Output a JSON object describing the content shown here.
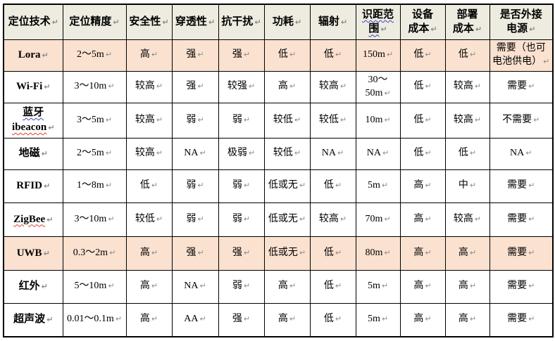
{
  "document": {
    "paragraph_mark": "↵"
  },
  "colors": {
    "header_bg": "#EEECE1",
    "highlight_row_bg": "#FAE1D0",
    "row_bg": "#FFFFFF",
    "border": "#000000",
    "text": "#000000",
    "pmark": "#8a8a8a",
    "squiggle_blue": "#3b45c4",
    "squiggle_red": "#e03c31"
  },
  "table": {
    "header": [
      {
        "label": "定位技术",
        "lines": [
          "定位技术"
        ]
      },
      {
        "label": "定位精度",
        "lines": [
          "定位精度"
        ]
      },
      {
        "label": "安全性",
        "lines": [
          "安全性"
        ]
      },
      {
        "label": "穿透性",
        "lines": [
          "穿透性"
        ]
      },
      {
        "label": "抗干扰",
        "lines": [
          "抗干扰"
        ]
      },
      {
        "label": "功耗",
        "lines": [
          "功耗"
        ]
      },
      {
        "label": "辐射",
        "lines": [
          "辐射"
        ]
      },
      {
        "label": "识距范围",
        "lines": [
          "识距范",
          "围"
        ],
        "squiggle": "blue"
      },
      {
        "label": "设备成本",
        "lines": [
          "设备",
          "成本"
        ]
      },
      {
        "label": "部署成本",
        "lines": [
          "部署",
          "成本"
        ]
      },
      {
        "label": "是否外接电源",
        "lines": [
          "是否外接",
          "电源"
        ]
      }
    ],
    "rows": [
      {
        "highlight": true,
        "tech": [
          {
            "text": "Lora"
          }
        ],
        "values": [
          "2～5m",
          "高",
          "强",
          "强",
          "低",
          "低",
          "150m",
          "低",
          "低",
          "需要（也可电池供电）"
        ]
      },
      {
        "highlight": false,
        "tech": [
          {
            "text": "Wi-Fi"
          }
        ],
        "values": [
          "3～10m",
          "较高",
          "强",
          "较强",
          "高",
          "较高",
          "30～50m",
          "低",
          "较高",
          "需要"
        ]
      },
      {
        "highlight": false,
        "tech": [
          {
            "text": "蓝牙",
            "squiggle": "blue"
          },
          {
            "text": "ibeacon",
            "squiggle": "red"
          }
        ],
        "values": [
          "3～5m",
          "较高",
          "弱",
          "弱",
          "较低",
          "较低",
          "10m",
          "低",
          "较高",
          "不需要"
        ]
      },
      {
        "highlight": false,
        "tech": [
          {
            "text": "地磁"
          }
        ],
        "values": [
          "2～5m",
          "较高",
          "NA",
          "极弱",
          "较低",
          "NA",
          "NA",
          "低",
          "低",
          "NA"
        ]
      },
      {
        "highlight": false,
        "tech": [
          {
            "text": "RFID"
          }
        ],
        "values": [
          "1～8m",
          "低",
          "弱",
          "弱",
          "低或无",
          "低",
          "5m",
          "高",
          "中",
          "需要"
        ]
      },
      {
        "highlight": false,
        "tech": [
          {
            "text": "ZigBee",
            "squiggle": "red"
          }
        ],
        "values": [
          "3～10m",
          "较低",
          "弱",
          "弱",
          "低或无",
          "较高",
          "70m",
          "高",
          "较高",
          "需要"
        ]
      },
      {
        "highlight": true,
        "tech": [
          {
            "text": "UWB"
          }
        ],
        "values": [
          "0.3～2m",
          "高",
          "强",
          "强",
          "低或无",
          "低",
          "80m",
          "高",
          "高",
          "需要"
        ]
      },
      {
        "highlight": false,
        "tech": [
          {
            "text": "红外"
          }
        ],
        "values": [
          "5～10m",
          "高",
          "NA",
          "弱",
          "高",
          "低",
          "5m",
          "高",
          "高",
          "需要"
        ]
      },
      {
        "highlight": false,
        "tech": [
          {
            "text": "超声波"
          }
        ],
        "values": [
          "0.01～0.1m",
          "高",
          "AA",
          "强",
          "高",
          "低",
          "5m",
          "高",
          "高",
          "需要"
        ]
      }
    ]
  }
}
